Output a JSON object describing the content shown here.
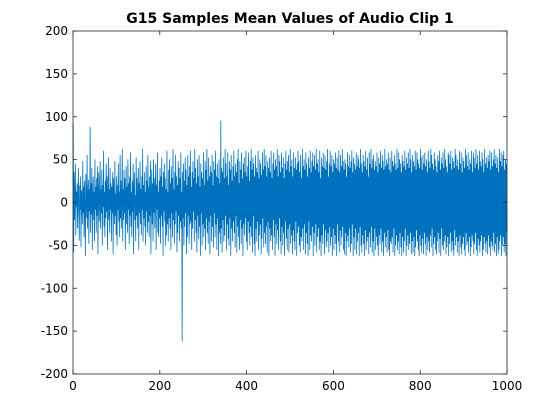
{
  "chart_data": {
    "type": "line",
    "title": "G15 Samples Mean Values of Audio Clip 1",
    "xlabel": "",
    "ylabel": "",
    "xlim": [
      0,
      1000
    ],
    "ylim": [
      -200,
      200
    ],
    "x_ticks": [
      0,
      200,
      400,
      600,
      800,
      1000
    ],
    "y_ticks": [
      -200,
      -150,
      -100,
      -50,
      0,
      50,
      100,
      150,
      200
    ],
    "grid": false,
    "line_color": "#0072BD",
    "series": [
      {
        "x_start": 1,
        "x_step": 1,
        "values_note_free": true,
        "values": [
          92,
          -58,
          35,
          -20,
          10,
          45,
          -38,
          12,
          -5,
          22,
          -30,
          8,
          40,
          -15,
          -44,
          20,
          -8,
          30,
          -52,
          14,
          6,
          -25,
          48,
          -12,
          18,
          -40,
          25,
          -6,
          -62,
          33,
          12,
          -18,
          55,
          -30,
          4,
          26,
          -48,
          15,
          -10,
          88,
          -35,
          22,
          -14,
          40,
          -55,
          8,
          30,
          -20,
          12,
          -45,
          50,
          -8,
          18,
          -35,
          28,
          -15,
          42,
          -60,
          10,
          35,
          -22,
          6,
          48,
          -30,
          15,
          -12,
          38,
          -50,
          20,
          -5,
          60,
          -28,
          12,
          -40,
          25,
          -18,
          45,
          -10,
          30,
          -55,
          8,
          52,
          -20,
          15,
          -35,
          40,
          -8,
          22,
          -45,
          18,
          -12,
          35,
          -60,
          28,
          5,
          -25,
          48,
          -15,
          10,
          -38,
          30,
          -50,
          20,
          -8,
          45,
          -22,
          12,
          -40,
          55,
          -18,
          25,
          -30,
          8,
          62,
          -45,
          15,
          -20,
          38,
          -12,
          28,
          -55,
          10,
          42,
          -25,
          18,
          -35,
          50,
          -8,
          22,
          -48,
          30,
          -15,
          58,
          -28,
          12,
          -40,
          25,
          -10,
          45,
          -60,
          18,
          35,
          -20,
          8,
          -45,
          52,
          -15,
          28,
          -30,
          10,
          40,
          -55,
          22,
          -12,
          48,
          -25,
          15,
          -38,
          30,
          -8,
          62,
          -45,
          20,
          -18,
          35,
          -28,
          12,
          -50,
          42,
          -10,
          25,
          -35,
          55,
          -22,
          18,
          -40,
          30,
          -15,
          48,
          -60,
          10,
          38,
          -25,
          22,
          -45,
          50,
          -12,
          28,
          -30,
          15,
          45,
          -55,
          20,
          -8,
          58,
          -35,
          12,
          -40,
          25,
          -18,
          40,
          -48,
          30,
          -15,
          52,
          -28,
          18,
          -62,
          35,
          -10,
          45,
          -22,
          28,
          -50,
          15,
          -38,
          60,
          -25,
          12,
          -45,
          38,
          -18,
          50,
          -30,
          22,
          -55,
          42,
          -12,
          28,
          -40,
          62,
          -20,
          15,
          -48,
          35,
          -25,
          55,
          -10,
          30,
          -58,
          20,
          -35,
          48,
          -15,
          40,
          -45,
          28,
          -22,
          58,
          -30,
          12,
          -162,
          35,
          -18,
          45,
          -50,
          25,
          -28,
          52,
          -12,
          38,
          -60,
          20,
          -40,
          55,
          -15,
          30,
          -48,
          42,
          -25,
          60,
          -22,
          18,
          -55,
          35,
          -30,
          48,
          -10,
          28,
          -45,
          62,
          -20,
          40,
          -35,
          22,
          -58,
          50,
          -15,
          30,
          -42,
          55,
          -28,
          18,
          -62,
          45,
          -12,
          35,
          -50,
          28,
          -25,
          58,
          -40,
          20,
          -30,
          48,
          -55,
          38,
          -18,
          62,
          -35,
          25,
          -48,
          52,
          -22,
          30,
          -60,
          42,
          -15,
          35,
          -45,
          55,
          -28,
          20,
          -52,
          48,
          -12,
          38,
          -40,
          60,
          -25,
          30,
          -55,
          45,
          -18,
          28,
          -62,
          50,
          -35,
          22,
          -48,
          95,
          -30,
          40,
          -58,
          35,
          -20,
          52,
          -45,
          28,
          -38,
          62,
          -15,
          45,
          -55,
          30,
          -25,
          58,
          -42,
          20,
          -50,
          48,
          -18,
          38,
          -62,
          55,
          -30,
          25,
          -45,
          42,
          -22,
          60,
          -35,
          30,
          -52,
          45,
          -15,
          35,
          -58,
          50,
          -28,
          62,
          -40,
          22,
          -55,
          48,
          -20,
          38,
          -48,
          58,
          -30,
          28,
          -62,
          45,
          -25,
          52,
          -38,
          35,
          -18,
          60,
          -45,
          30,
          -55,
          42,
          -22,
          58,
          -35,
          25,
          -50,
          48,
          -28,
          62,
          -40,
          38,
          -58,
          52,
          -15,
          45,
          -48,
          30,
          -62,
          55,
          -30,
          40,
          -45,
          35,
          -22,
          60,
          -55,
          28,
          -38,
          50,
          -25,
          45,
          -60,
          32,
          -42,
          58,
          -18,
          38,
          -52,
          62,
          -35,
          42,
          -48,
          55,
          -28,
          30,
          -58,
          48,
          -22,
          40,
          -62,
          52,
          -30,
          35,
          -45,
          60,
          -38,
          28,
          -55,
          45,
          -20,
          58,
          -40,
          38,
          -62,
          50,
          -25,
          42,
          -48,
          62,
          -32,
          30,
          -55,
          55,
          -18,
          48,
          -45,
          35,
          -60,
          58,
          -28,
          40,
          -50,
          52,
          -35,
          28,
          -62,
          45,
          -22,
          60,
          -42,
          38,
          -55,
          48,
          -30,
          55,
          -58,
          35,
          -25,
          62,
          -48,
          42,
          -38,
          50,
          -60,
          30,
          -32,
          58,
          -45,
          40,
          -55,
          52,
          -22,
          38,
          -62,
          45,
          -35,
          60,
          -28,
          48,
          -50,
          35,
          -58,
          55,
          -40,
          28,
          -45,
          62,
          -30,
          42,
          -55,
          50,
          -25,
          38,
          -60,
          58,
          -35,
          45,
          -48,
          30,
          -62,
          52,
          -22,
          40,
          -55,
          60,
          -38,
          35,
          -45,
          48,
          -28,
          58,
          -62,
          42,
          -35,
          55,
          -50,
          38,
          -25,
          62,
          -58,
          45,
          -40,
          50,
          -30,
          35,
          -55,
          60,
          -45,
          28,
          -62,
          52,
          -38,
          42,
          -48,
          58,
          -25,
          40,
          -60,
          55,
          -32,
          38,
          -52,
          48,
          -45,
          62,
          -35,
          30,
          -58,
          45,
          -28,
          60,
          -50,
          42,
          -40,
          55,
          -62,
          35,
          -30,
          50,
          -55,
          45,
          -38,
          58,
          -48,
          40,
          -62,
          52,
          -25,
          38,
          -45,
          60,
          -58,
          35,
          -32,
          55,
          -50,
          42,
          -40,
          62,
          -28,
          48,
          -55,
          38,
          -60,
          50,
          -35,
          45,
          -62,
          30,
          -45,
          58,
          -38,
          42,
          -52,
          55,
          -30,
          40,
          -58,
          48,
          -48,
          60,
          -25,
          35,
          -62,
          52,
          -40,
          45,
          -55,
          38,
          -30,
          58,
          -60,
          42,
          -45,
          55,
          -35,
          50,
          -62,
          40,
          -28,
          62,
          -50,
          45,
          -58,
          35,
          -38,
          55,
          -48,
          48,
          -62,
          42,
          -32,
          60,
          -55,
          38,
          -45,
          52,
          -40,
          30,
          -60,
          58,
          -35,
          45,
          -52,
          62,
          -28,
          40,
          -58,
          50,
          -45,
          55,
          -62,
          38,
          -30,
          48,
          -55,
          42,
          -40,
          58,
          -50,
          35,
          -62,
          52,
          -38,
          45,
          -48,
          60,
          -30,
          40,
          -58,
          55,
          -45,
          48,
          -62,
          38,
          -35,
          62,
          -52,
          42,
          -40,
          50,
          -58,
          45,
          -32,
          58,
          -55,
          38,
          -62,
          52,
          -45,
          35,
          -48,
          60,
          -40,
          48,
          -58,
          42,
          -30,
          55,
          -62,
          45,
          -50,
          38,
          -38,
          62,
          -55,
          40,
          -45,
          58,
          -60,
          50,
          -35,
          45,
          -52,
          35,
          -62,
          55,
          -40,
          48,
          -58,
          42,
          -45,
          60,
          -30,
          38,
          -62,
          52,
          -50,
          45,
          -38,
          58,
          -55,
          40,
          -48,
          62,
          -35,
          50,
          -60,
          35,
          -45,
          55,
          -58,
          48,
          -40,
          42,
          -62,
          60,
          -52,
          38,
          -32,
          58,
          -45,
          50,
          -55,
          45,
          -62,
          40,
          -38,
          62,
          -50,
          52,
          -58,
          38,
          -42,
          55,
          -60,
          45,
          -35,
          58,
          -48,
          42,
          -62,
          50,
          -40,
          35,
          -55,
          60,
          -45,
          48,
          -58,
          40,
          -38,
          62,
          -52,
          55,
          -30,
          45,
          -62,
          38,
          -48,
          58,
          -40,
          50,
          -55,
          42,
          -60,
          35,
          -45,
          55,
          -35,
          48,
          -58,
          60,
          -42,
          38,
          -62,
          52,
          -30,
          45,
          -50,
          58,
          -55,
          40,
          -45,
          62,
          -38,
          50,
          -60,
          42,
          -52,
          35,
          -40,
          58,
          -62,
          55,
          -48,
          45,
          -35,
          60,
          -58,
          38,
          -45,
          52,
          -55,
          48,
          -62,
          40,
          -32,
          62,
          -50,
          55,
          -40,
          42,
          -58,
          50,
          -45,
          38,
          -62,
          60,
          -38,
          45,
          -52,
          58,
          -60,
          35,
          -48,
          52,
          -40,
          48,
          -55,
          40,
          -62,
          62,
          -35,
          55,
          -50,
          42,
          -45,
          58,
          -58,
          38,
          -40,
          50,
          -62,
          45,
          -52,
          60,
          -38,
          35,
          -45,
          58,
          -60,
          52,
          -48,
          40,
          -35,
          62,
          -55,
          45,
          -62,
          55,
          -42,
          38,
          -50,
          60,
          -58,
          48,
          -45,
          42,
          -38,
          58,
          -62,
          50,
          -55,
          35,
          -40,
          62,
          -48,
          45,
          -58,
          52,
          -45,
          40,
          -60,
          55,
          -38,
          48,
          -52,
          60,
          -62,
          38,
          -45,
          58,
          -50,
          42,
          -55,
          50,
          -35,
          62,
          -58,
          45,
          -48,
          55,
          -62,
          40,
          -40,
          52,
          -60,
          35,
          -55,
          62,
          -45,
          48,
          -38,
          58,
          -62,
          42,
          -50,
          55,
          -40,
          60,
          -58,
          38,
          -48,
          50,
          -62,
          45,
          -35
        ]
      }
    ]
  }
}
